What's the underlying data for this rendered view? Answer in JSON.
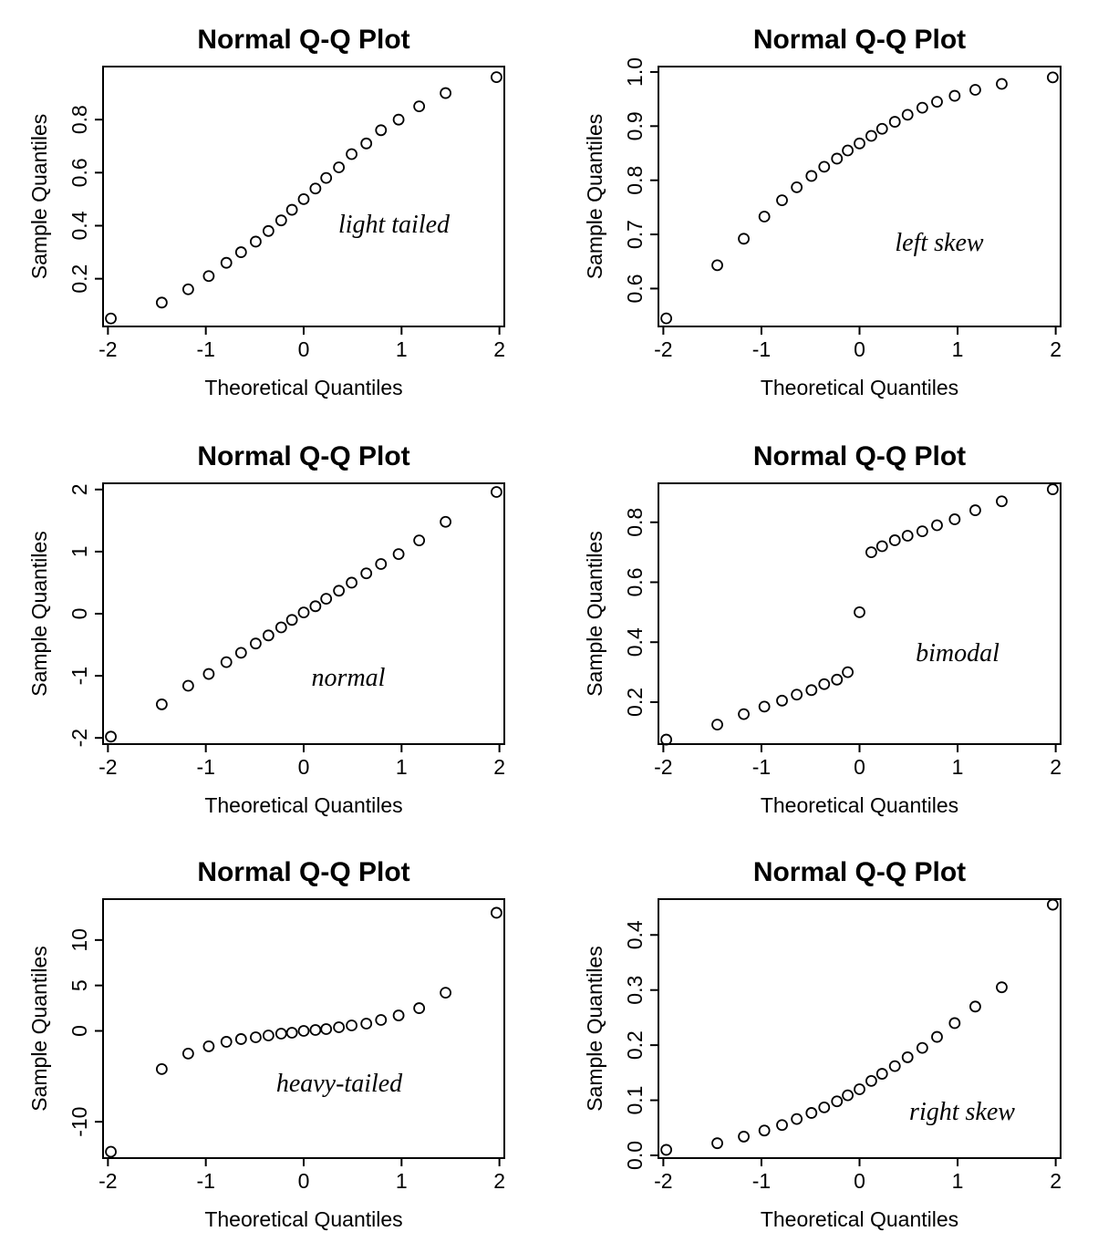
{
  "chart_data": [
    {
      "type": "scatter",
      "title": "Normal Q-Q Plot",
      "xlabel": "Theoretical Quantiles",
      "ylabel": "Sample Quantiles",
      "annotation": "light tailed",
      "xlim": [
        -2.05,
        2.05
      ],
      "ylim": [
        0.02,
        1.0
      ],
      "xticks": [
        -2,
        -1,
        0,
        1,
        2
      ],
      "xtick_labels": [
        "-2",
        "-1",
        "0",
        "1",
        "2"
      ],
      "yticks": [
        0.2,
        0.4,
        0.6,
        0.8
      ],
      "ytick_labels": [
        "0.2",
        "0.4",
        "0.6",
        "0.8"
      ],
      "x": [
        -1.97,
        -1.45,
        -1.18,
        -0.97,
        -0.79,
        -0.64,
        -0.49,
        -0.36,
        -0.23,
        -0.12,
        0.0,
        0.12,
        0.23,
        0.36,
        0.49,
        0.64,
        0.79,
        0.97,
        1.18,
        1.45,
        1.97
      ],
      "y": [
        0.05,
        0.11,
        0.16,
        0.21,
        0.26,
        0.3,
        0.34,
        0.38,
        0.42,
        0.46,
        0.5,
        0.54,
        0.58,
        0.62,
        0.67,
        0.71,
        0.76,
        0.8,
        0.85,
        0.9,
        0.96
      ]
    },
    {
      "type": "scatter",
      "title": "Normal Q-Q Plot",
      "xlabel": "Theoretical Quantiles",
      "ylabel": "Sample Quantiles",
      "annotation": "left skew",
      "xlim": [
        -2.05,
        2.05
      ],
      "ylim": [
        0.53,
        1.01
      ],
      "xticks": [
        -2,
        -1,
        0,
        1,
        2
      ],
      "xtick_labels": [
        "-2",
        "-1",
        "0",
        "1",
        "2"
      ],
      "yticks": [
        0.6,
        0.7,
        0.8,
        0.9,
        1.0
      ],
      "ytick_labels": [
        "0.6",
        "0.7",
        "0.8",
        "0.9",
        "1.0"
      ],
      "x": [
        -1.97,
        -1.45,
        -1.18,
        -0.97,
        -0.79,
        -0.64,
        -0.49,
        -0.36,
        -0.23,
        -0.12,
        0.0,
        0.12,
        0.23,
        0.36,
        0.49,
        0.64,
        0.79,
        0.97,
        1.18,
        1.45,
        1.97
      ],
      "y": [
        0.545,
        0.643,
        0.692,
        0.733,
        0.763,
        0.787,
        0.808,
        0.825,
        0.84,
        0.855,
        0.868,
        0.882,
        0.895,
        0.908,
        0.921,
        0.934,
        0.945,
        0.956,
        0.967,
        0.978,
        0.99
      ]
    },
    {
      "type": "scatter",
      "title": "Normal Q-Q Plot",
      "xlabel": "Theoretical Quantiles",
      "ylabel": "Sample Quantiles",
      "annotation": "normal",
      "xlim": [
        -2.05,
        2.05
      ],
      "ylim": [
        -2.1,
        2.1
      ],
      "xticks": [
        -2,
        -1,
        0,
        1,
        2
      ],
      "xtick_labels": [
        "-2",
        "-1",
        "0",
        "1",
        "2"
      ],
      "yticks": [
        -2,
        -1,
        0,
        1,
        2
      ],
      "ytick_labels": [
        "-2",
        "-1",
        "0",
        "1",
        "2"
      ],
      "x": [
        -1.97,
        -1.45,
        -1.18,
        -0.97,
        -0.79,
        -0.64,
        -0.49,
        -0.36,
        -0.23,
        -0.12,
        0.0,
        0.12,
        0.23,
        0.36,
        0.49,
        0.64,
        0.79,
        0.97,
        1.18,
        1.45,
        1.97
      ],
      "y": [
        -1.98,
        -1.46,
        -1.16,
        -0.97,
        -0.78,
        -0.63,
        -0.48,
        -0.35,
        -0.22,
        -0.1,
        0.02,
        0.12,
        0.24,
        0.37,
        0.5,
        0.65,
        0.8,
        0.96,
        1.18,
        1.48,
        1.96
      ]
    },
    {
      "type": "scatter",
      "title": "Normal Q-Q Plot",
      "xlabel": "Theoretical Quantiles",
      "ylabel": "Sample Quantiles",
      "annotation": "bimodal",
      "xlim": [
        -2.05,
        2.05
      ],
      "ylim": [
        0.06,
        0.93
      ],
      "xticks": [
        -2,
        -1,
        0,
        1,
        2
      ],
      "xtick_labels": [
        "-2",
        "-1",
        "0",
        "1",
        "2"
      ],
      "yticks": [
        0.2,
        0.4,
        0.6,
        0.8
      ],
      "ytick_labels": [
        "0.2",
        "0.4",
        "0.6",
        "0.8"
      ],
      "x": [
        -1.97,
        -1.45,
        -1.18,
        -0.97,
        -0.79,
        -0.64,
        -0.49,
        -0.36,
        -0.23,
        -0.12,
        0.0,
        0.12,
        0.23,
        0.36,
        0.49,
        0.64,
        0.79,
        0.97,
        1.18,
        1.45,
        1.97
      ],
      "y": [
        0.075,
        0.125,
        0.16,
        0.185,
        0.205,
        0.225,
        0.24,
        0.26,
        0.275,
        0.3,
        0.5,
        0.7,
        0.72,
        0.74,
        0.755,
        0.77,
        0.79,
        0.81,
        0.84,
        0.87,
        0.91
      ]
    },
    {
      "type": "scatter",
      "title": "Normal Q-Q Plot",
      "xlabel": "Theoretical Quantiles",
      "ylabel": "Sample Quantiles",
      "annotation": "heavy-tailed",
      "xlim": [
        -2.05,
        2.05
      ],
      "ylim": [
        -14.0,
        14.5
      ],
      "xticks": [
        -2,
        -1,
        0,
        1,
        2
      ],
      "xtick_labels": [
        "-2",
        "-1",
        "0",
        "1",
        "2"
      ],
      "yticks": [
        -10,
        0,
        5,
        10
      ],
      "ytick_labels": [
        "-10",
        "0",
        "5",
        "10"
      ],
      "x": [
        -1.97,
        -1.45,
        -1.18,
        -0.97,
        -0.79,
        -0.64,
        -0.49,
        -0.36,
        -0.23,
        -0.12,
        0.0,
        0.12,
        0.23,
        0.36,
        0.49,
        0.64,
        0.79,
        0.97,
        1.18,
        1.45,
        1.97
      ],
      "y": [
        -13.3,
        -4.2,
        -2.5,
        -1.7,
        -1.2,
        -0.9,
        -0.7,
        -0.5,
        -0.3,
        -0.2,
        0.0,
        0.1,
        0.2,
        0.4,
        0.6,
        0.8,
        1.2,
        1.7,
        2.5,
        4.2,
        13.0
      ]
    },
    {
      "type": "scatter",
      "title": "Normal Q-Q Plot",
      "xlabel": "Theoretical Quantiles",
      "ylabel": "Sample Quantiles",
      "annotation": "right skew",
      "xlim": [
        -2.05,
        2.05
      ],
      "ylim": [
        -0.005,
        0.465
      ],
      "xticks": [
        -2,
        -1,
        0,
        1,
        2
      ],
      "xtick_labels": [
        "-2",
        "-1",
        "0",
        "1",
        "2"
      ],
      "yticks": [
        0.0,
        0.1,
        0.2,
        0.3,
        0.4
      ],
      "ytick_labels": [
        "0.0",
        "0.1",
        "0.2",
        "0.3",
        "0.4"
      ],
      "x": [
        -1.97,
        -1.45,
        -1.18,
        -0.97,
        -0.79,
        -0.64,
        -0.49,
        -0.36,
        -0.23,
        -0.12,
        0.0,
        0.12,
        0.23,
        0.36,
        0.49,
        0.64,
        0.79,
        0.97,
        1.18,
        1.45,
        1.97
      ],
      "y": [
        0.01,
        0.022,
        0.034,
        0.045,
        0.055,
        0.066,
        0.077,
        0.087,
        0.098,
        0.109,
        0.12,
        0.135,
        0.148,
        0.162,
        0.178,
        0.195,
        0.215,
        0.24,
        0.27,
        0.305,
        0.455
      ]
    }
  ]
}
